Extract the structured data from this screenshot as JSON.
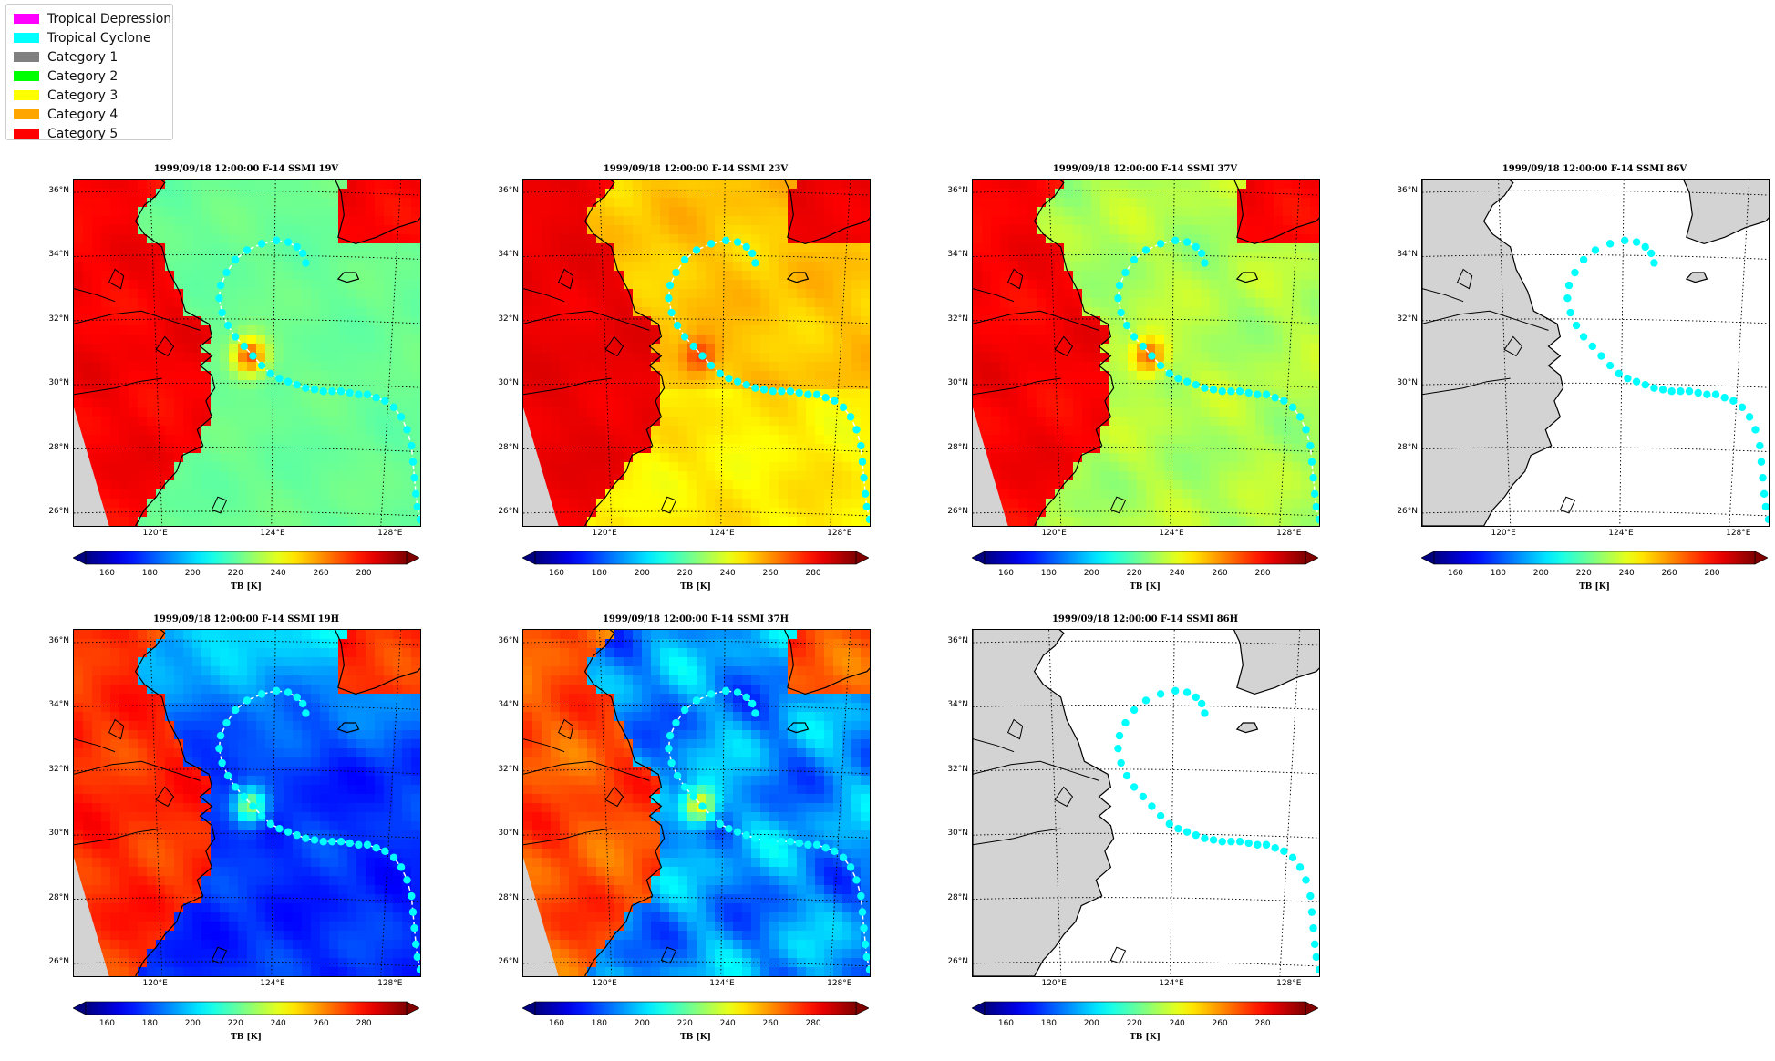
{
  "legend": {
    "items": [
      {
        "label": "Tropical Depression",
        "color": "#ff00ff"
      },
      {
        "label": "Tropical Cyclone",
        "color": "#00ffff"
      },
      {
        "label": "Category 1",
        "color": "#808080"
      },
      {
        "label": "Category 2",
        "color": "#00ff00"
      },
      {
        "label": "Category 3",
        "color": "#ffff00"
      },
      {
        "label": "Category 4",
        "color": "#ffa500"
      },
      {
        "label": "Category 5",
        "color": "#ff0000"
      }
    ]
  },
  "axes": {
    "lat_labels": [
      "36°N",
      "34°N",
      "32°N",
      "30°N",
      "28°N",
      "26°N"
    ],
    "lon_labels": [
      "120°E",
      "124°E",
      "128°E"
    ]
  },
  "colorbar": {
    "ticks": [
      "160",
      "180",
      "200",
      "220",
      "240",
      "260",
      "280"
    ],
    "label": "TB [K]",
    "range": [
      150,
      300
    ],
    "colormap": "jet",
    "extend": "both"
  },
  "track": {
    "color": "#00ffff",
    "line_color": "#ffffff",
    "points_lon_lat": [
      [
        129.0,
        25.8
      ],
      [
        128.9,
        26.2
      ],
      [
        128.85,
        26.6
      ],
      [
        128.8,
        27.1
      ],
      [
        128.75,
        27.6
      ],
      [
        128.7,
        28.1
      ],
      [
        128.55,
        28.6
      ],
      [
        128.35,
        29.0
      ],
      [
        128.1,
        29.3
      ],
      [
        127.8,
        29.5
      ],
      [
        127.5,
        29.6
      ],
      [
        127.2,
        29.7
      ],
      [
        126.9,
        29.7
      ],
      [
        126.6,
        29.75
      ],
      [
        126.3,
        29.8
      ],
      [
        126.0,
        29.8
      ],
      [
        125.7,
        29.8
      ],
      [
        125.4,
        29.85
      ],
      [
        125.1,
        29.9
      ],
      [
        124.8,
        30.0
      ],
      [
        124.5,
        30.1
      ],
      [
        124.2,
        30.2
      ],
      [
        123.9,
        30.35
      ],
      [
        123.6,
        30.6
      ],
      [
        123.3,
        30.9
      ],
      [
        123.0,
        31.2
      ],
      [
        122.7,
        31.5
      ],
      [
        122.45,
        31.85
      ],
      [
        122.25,
        32.25
      ],
      [
        122.15,
        32.7
      ],
      [
        122.2,
        33.1
      ],
      [
        122.4,
        33.5
      ],
      [
        122.7,
        33.9
      ],
      [
        123.1,
        34.2
      ],
      [
        123.6,
        34.4
      ],
      [
        124.1,
        34.5
      ],
      [
        124.5,
        34.45
      ],
      [
        124.8,
        34.3
      ],
      [
        125.0,
        34.1
      ],
      [
        125.1,
        33.8
      ]
    ]
  },
  "panels": [
    {
      "title": "1999/09/18 12:00:00  F-14 SSMI 19V",
      "field": "v19"
    },
    {
      "title": "1999/09/18 12:00:00  F-14 SSMI 23V",
      "field": "v23"
    },
    {
      "title": "1999/09/18 12:00:00  F-14 SSMI 37V",
      "field": "v37"
    },
    {
      "title": "1999/09/18 12:00:00  F-14 SSMI 86V",
      "field": "blank"
    },
    {
      "title": "1999/09/18 12:00:00  F-14 SSMI 19H",
      "field": "h19"
    },
    {
      "title": "1999/09/18 12:00:00  F-14 SSMI 37H",
      "field": "h37"
    },
    {
      "title": "1999/09/18 12:00:00  F-14 SSMI 86H",
      "field": "blank"
    }
  ]
}
